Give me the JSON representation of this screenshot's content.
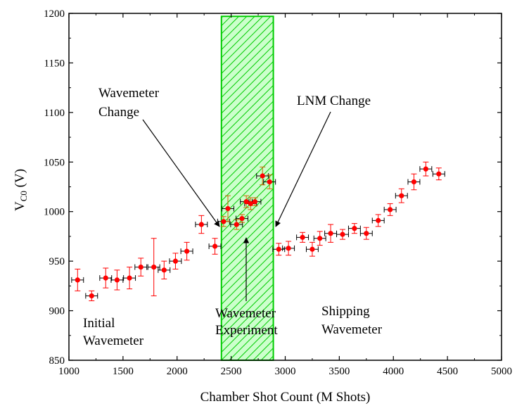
{
  "chart_data": {
    "type": "scatter",
    "xlabel": "Chamber Shot Count (M Shots)",
    "ylabel_main": "V",
    "ylabel_sub": "C0",
    "ylabel_unit": " (V)",
    "xlim": [
      1000,
      5000
    ],
    "ylim": [
      850,
      1200
    ],
    "xticks": [
      1000,
      1500,
      2000,
      2500,
      3000,
      3500,
      4000,
      4500,
      5000
    ],
    "yticks": [
      850,
      900,
      950,
      1000,
      1050,
      1100,
      1150,
      1200
    ],
    "grid": false,
    "x_error": 55,
    "points": [
      {
        "x": 1080,
        "y": 931,
        "err": 11
      },
      {
        "x": 1210,
        "y": 915,
        "err": 5
      },
      {
        "x": 1340,
        "y": 933,
        "err": 10
      },
      {
        "x": 1445,
        "y": 931,
        "err": 10
      },
      {
        "x": 1560,
        "y": 933,
        "err": 11
      },
      {
        "x": 1665,
        "y": 944,
        "err": 9
      },
      {
        "x": 1785,
        "y": 944,
        "err": 29
      },
      {
        "x": 1880,
        "y": 941,
        "err": 9
      },
      {
        "x": 1985,
        "y": 950,
        "err": 8
      },
      {
        "x": 2090,
        "y": 960,
        "err": 9
      },
      {
        "x": 2225,
        "y": 987,
        "err": 9
      },
      {
        "x": 2350,
        "y": 965,
        "err": 8
      },
      {
        "x": 2430,
        "y": 990,
        "err": 5
      },
      {
        "x": 2470,
        "y": 1003,
        "err": 13
      },
      {
        "x": 2550,
        "y": 987,
        "err": 5
      },
      {
        "x": 2600,
        "y": 993,
        "err": 4
      },
      {
        "x": 2640,
        "y": 1010,
        "err": 6
      },
      {
        "x": 2680,
        "y": 1008,
        "err": 6
      },
      {
        "x": 2720,
        "y": 1010,
        "err": 4
      },
      {
        "x": 2790,
        "y": 1036,
        "err": 9
      },
      {
        "x": 2855,
        "y": 1030,
        "err": 7
      },
      {
        "x": 2940,
        "y": 962,
        "err": 6
      },
      {
        "x": 3030,
        "y": 963,
        "err": 7
      },
      {
        "x": 3160,
        "y": 974,
        "err": 5
      },
      {
        "x": 3250,
        "y": 962,
        "err": 7
      },
      {
        "x": 3320,
        "y": 973,
        "err": 7
      },
      {
        "x": 3420,
        "y": 978,
        "err": 9
      },
      {
        "x": 3530,
        "y": 977,
        "err": 5
      },
      {
        "x": 3640,
        "y": 983,
        "err": 5
      },
      {
        "x": 3750,
        "y": 978,
        "err": 6
      },
      {
        "x": 3860,
        "y": 991,
        "err": 6
      },
      {
        "x": 3970,
        "y": 1002,
        "err": 6
      },
      {
        "x": 4075,
        "y": 1016,
        "err": 7
      },
      {
        "x": 4190,
        "y": 1030,
        "err": 8
      },
      {
        "x": 4300,
        "y": 1043,
        "err": 7
      },
      {
        "x": 4420,
        "y": 1038,
        "err": 6
      }
    ],
    "shaded_region": {
      "x0": 2410,
      "x1": 2890,
      "y0": 850,
      "y1": 1197
    },
    "annotations": [
      {
        "id": "initial",
        "lines": [
          "Initial",
          "Wavemeter"
        ]
      },
      {
        "id": "wm-change",
        "lines": [
          "Wavemeter",
          "Change"
        ]
      },
      {
        "id": "lnm-change",
        "lines": [
          "LNM Change"
        ]
      },
      {
        "id": "wm-exp",
        "lines": [
          "Wavemeter",
          "Experiment"
        ]
      },
      {
        "id": "shipping",
        "lines": [
          "Shipping",
          "Wavemeter"
        ]
      }
    ],
    "colors": {
      "marker": "#ff0000",
      "y_error": "#ff0000",
      "y_error_in_region": "#cc6600",
      "x_error": "#000000",
      "region_fill": "#ccffcc",
      "region_hatch": "#00cc00",
      "axes": "#000000"
    }
  }
}
